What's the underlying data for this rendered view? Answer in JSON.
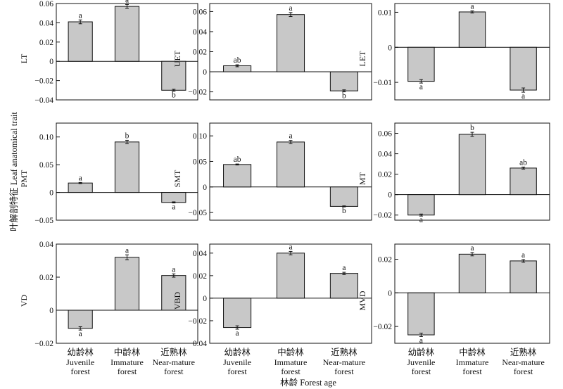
{
  "figure": {
    "y_super_label": "叶解剖特征 Leaf anatomical trait",
    "x_super_label": "林龄 Forest age",
    "x_categories_cn": [
      "幼龄林",
      "中龄林",
      "近熟林"
    ],
    "x_categories_en": [
      [
        "Juvenile",
        "forest"
      ],
      [
        "Immature",
        "forest"
      ],
      [
        "Near-mature",
        "forest"
      ]
    ],
    "bar_color": "#c8c8c8"
  },
  "chart_data": [
    {
      "type": "bar",
      "ylabel": "LT",
      "categories": [
        "Juvenile forest",
        "Immature forest",
        "Near-mature forest"
      ],
      "values": [
        0.041,
        0.057,
        -0.03
      ],
      "errors": [
        0.002,
        0.002,
        0.001
      ],
      "letters": [
        "a",
        "a",
        "b"
      ],
      "ylim": [
        -0.04,
        0.06
      ],
      "yticks": [
        0.06,
        0.04,
        0.02,
        0,
        -0.02,
        -0.04
      ],
      "tick_labels": [
        "0.06",
        "0.04",
        "0.02",
        "0",
        "−0.02",
        "−0.04"
      ]
    },
    {
      "type": "bar",
      "ylabel": "UET",
      "categories": [
        "Juvenile forest",
        "Immature forest",
        "Near-mature forest"
      ],
      "values": [
        0.006,
        0.057,
        -0.019
      ],
      "errors": [
        0.001,
        0.002,
        0.001
      ],
      "letters": [
        "ab",
        "a",
        "b"
      ],
      "ylim": [
        -0.028,
        0.068
      ],
      "yticks": [
        0.06,
        0.04,
        0.02,
        0,
        -0.02
      ],
      "tick_labels": [
        "0.06",
        "0.04",
        "0.02",
        "0",
        "−0.02"
      ]
    },
    {
      "type": "bar",
      "ylabel": "LET",
      "categories": [
        "Juvenile forest",
        "Immature forest",
        "Near-mature forest"
      ],
      "values": [
        -0.0097,
        0.0101,
        -0.0122
      ],
      "errors": [
        0.0005,
        0.0003,
        0.0006
      ],
      "letters": [
        "a",
        "a",
        "a"
      ],
      "ylim": [
        -0.015,
        0.0125
      ],
      "yticks": [
        0.01,
        0,
        -0.01
      ],
      "tick_labels": [
        "0.01",
        "0",
        "−0.01"
      ]
    },
    {
      "type": "bar",
      "ylabel": "PMT",
      "categories": [
        "Juvenile forest",
        "Immature forest",
        "Near-mature forest"
      ],
      "values": [
        0.017,
        0.091,
        -0.018
      ],
      "errors": [
        0.001,
        0.003,
        0.001
      ],
      "letters": [
        "a",
        "b",
        "a"
      ],
      "ylim": [
        -0.05,
        0.125
      ],
      "yticks": [
        0.1,
        0.05,
        0,
        -0.05
      ],
      "tick_labels": [
        "0.10",
        "0.05",
        "0",
        "−0.05"
      ]
    },
    {
      "type": "bar",
      "ylabel": "SMT",
      "categories": [
        "Juvenile forest",
        "Immature forest",
        "Near-mature forest"
      ],
      "values": [
        0.044,
        0.088,
        -0.038
      ],
      "errors": [
        0.001,
        0.003,
        0.001
      ],
      "letters": [
        "ab",
        "a",
        "b"
      ],
      "ylim": [
        -0.065,
        0.125
      ],
      "yticks": [
        0.1,
        0.05,
        0,
        -0.05
      ],
      "tick_labels": [
        "0.10",
        "0.05",
        "0",
        "−0.05"
      ]
    },
    {
      "type": "bar",
      "ylabel": "MT",
      "categories": [
        "Juvenile forest",
        "Immature forest",
        "Near-mature forest"
      ],
      "values": [
        -0.02,
        0.059,
        0.026
      ],
      "errors": [
        0.001,
        0.002,
        0.001
      ],
      "letters": [
        "a",
        "b",
        "ab"
      ],
      "ylim": [
        -0.025,
        0.07
      ],
      "yticks": [
        0.06,
        0.04,
        0.02,
        0,
        -0.02
      ],
      "tick_labels": [
        "0.06",
        "0.04",
        "0.02",
        "0",
        "−0.02"
      ]
    },
    {
      "type": "bar",
      "ylabel": "VD",
      "categories": [
        "Juvenile forest",
        "Immature forest",
        "Near-mature forest"
      ],
      "values": [
        -0.011,
        0.032,
        0.021
      ],
      "errors": [
        0.001,
        0.0015,
        0.001
      ],
      "letters": [
        "a",
        "a",
        "a"
      ],
      "ylim": [
        -0.02,
        0.04
      ],
      "yticks": [
        0.04,
        0.02,
        0,
        -0.02
      ],
      "tick_labels": [
        "0.04",
        "0.02",
        "0",
        "−0.02"
      ]
    },
    {
      "type": "bar",
      "ylabel": "VBD",
      "categories": [
        "Juvenile forest",
        "Immature forest",
        "Near-mature forest"
      ],
      "values": [
        -0.026,
        0.04,
        0.022
      ],
      "errors": [
        0.0015,
        0.0015,
        0.001
      ],
      "letters": [
        "a",
        "a",
        "a"
      ],
      "ylim": [
        -0.04,
        0.048
      ],
      "yticks": [
        0.04,
        0.02,
        0,
        -0.02,
        -0.04
      ],
      "tick_labels": [
        "0.04",
        "0.02",
        "0",
        "−0.02",
        "−0.04"
      ]
    },
    {
      "type": "bar",
      "ylabel": "MVD",
      "categories": [
        "Juvenile forest",
        "Immature forest",
        "Near-mature forest"
      ],
      "values": [
        -0.025,
        0.023,
        0.019
      ],
      "errors": [
        0.001,
        0.001,
        0.0008
      ],
      "letters": [
        "a",
        "a",
        "a"
      ],
      "ylim": [
        -0.03,
        0.029
      ],
      "yticks": [
        0.02,
        0,
        -0.02
      ],
      "tick_labels": [
        "0.02",
        "0",
        "−0.02"
      ]
    }
  ]
}
